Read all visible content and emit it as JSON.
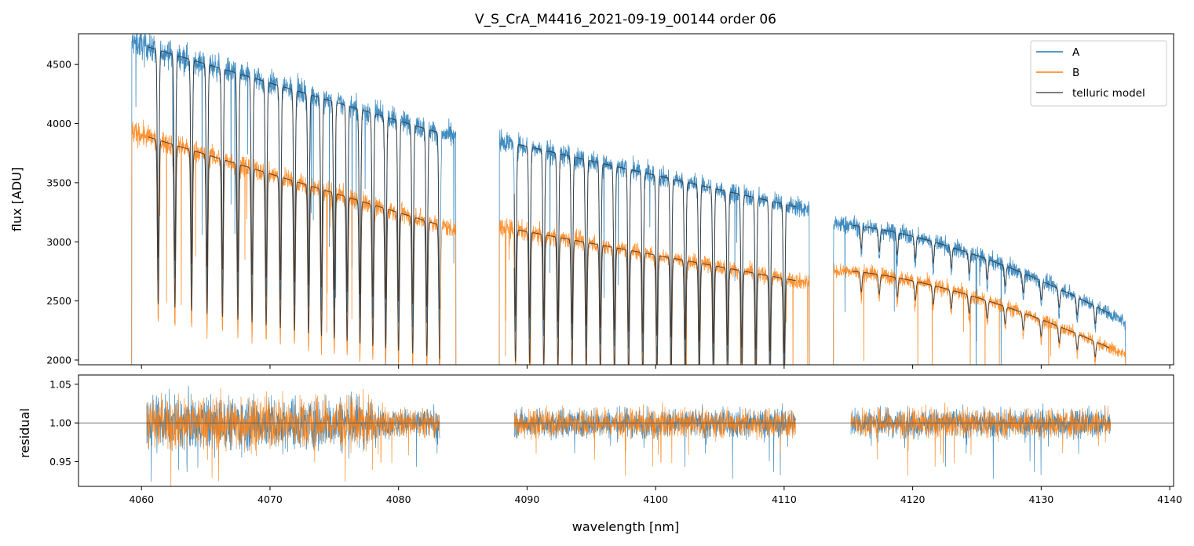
{
  "chart_data": [
    {
      "type": "line",
      "title": "V_S_CrA_M4416_2021-09-19_00144  order 06",
      "xlabel": "",
      "ylabel": "flux [ADU]",
      "xlim": [
        4055.1,
        4140.3
      ],
      "ylim": [
        1960,
        4760
      ],
      "xticks": [
        4060,
        4070,
        4080,
        4090,
        4100,
        4110,
        4120,
        4130,
        4140
      ],
      "yticks": [
        2000,
        2500,
        3000,
        3500,
        4000,
        4500
      ],
      "ytick_labels": [
        "2000",
        "2500",
        "3000",
        "3500",
        "4000",
        "4500"
      ],
      "legend_position": "top-right",
      "legend": [
        {
          "label": "A",
          "color": "#1f77b4"
        },
        {
          "label": "B",
          "color": "#ff7f0e"
        },
        {
          "label": "telluric model",
          "color": "#555555"
        }
      ],
      "segments": [
        {
          "x": [
            4059.2,
            4084.5
          ],
          "A_level": [
            4690,
            3880
          ],
          "B_level": [
            3930,
            3100
          ],
          "lines": [
            4061.3,
            4062.6,
            4063.9,
            4065.1,
            4066.3,
            4067.5,
            4068.6,
            4069.7,
            4070.8,
            4071.9,
            4073.0,
            4074.0,
            4075.0,
            4076.0,
            4077.0,
            4078.0,
            4079.0,
            4080.0,
            4081.1,
            4082.2,
            4083.2
          ]
        },
        {
          "x": [
            4087.8,
            4112.0
          ],
          "A_level": [
            3860,
            3270
          ],
          "B_level": [
            3130,
            2650
          ],
          "lines": [
            4089.1,
            4090.2,
            4091.3,
            4092.4,
            4093.5,
            4094.6,
            4095.7,
            4096.8,
            4097.9,
            4099.0,
            4100.1,
            4101.2,
            4102.3,
            4103.4,
            4104.5,
            4105.6,
            4106.7,
            4107.8,
            4108.9,
            4110.0
          ]
        },
        {
          "x": [
            4113.8,
            4136.6
          ],
          "A_level": [
            3150,
            2320
          ],
          "B_level": [
            2760,
            2040
          ],
          "lines": [
            4116.0,
            4117.4,
            4118.8,
            4120.2,
            4121.6,
            4123.0,
            4124.4,
            4125.8,
            4127.2,
            4128.6,
            4130.0,
            4131.4,
            4132.8,
            4134.2
          ]
        }
      ],
      "model_ranges": [
        [
          4060.5,
          4083.2
        ],
        [
          4089.0,
          4110.9
        ],
        [
          4115.3,
          4135.3
        ]
      ]
    },
    {
      "type": "line",
      "title": "",
      "xlabel": "wavelength [nm]",
      "ylabel": "residual",
      "xlim": [
        4055.1,
        4140.3
      ],
      "ylim": [
        0.918,
        1.062
      ],
      "xticks": [
        4060,
        4070,
        4080,
        4090,
        4100,
        4110,
        4120,
        4130,
        4140
      ],
      "xtick_labels": [
        "4060",
        "4070",
        "4080",
        "4090",
        "4100",
        "4110",
        "4120",
        "4130",
        "4140"
      ],
      "yticks": [
        0.95,
        1.0,
        1.05
      ],
      "ytick_labels": [
        "0.95",
        "1.00",
        "1.05"
      ],
      "reference_line": 1.0,
      "residual_ranges": [
        [
          4060.4,
          4083.2
        ],
        [
          4089.0,
          4110.9
        ],
        [
          4115.2,
          4135.4
        ]
      ],
      "series": [
        {
          "name": "A",
          "color": "#1f77b4"
        },
        {
          "name": "B",
          "color": "#ff7f0e"
        }
      ]
    }
  ]
}
